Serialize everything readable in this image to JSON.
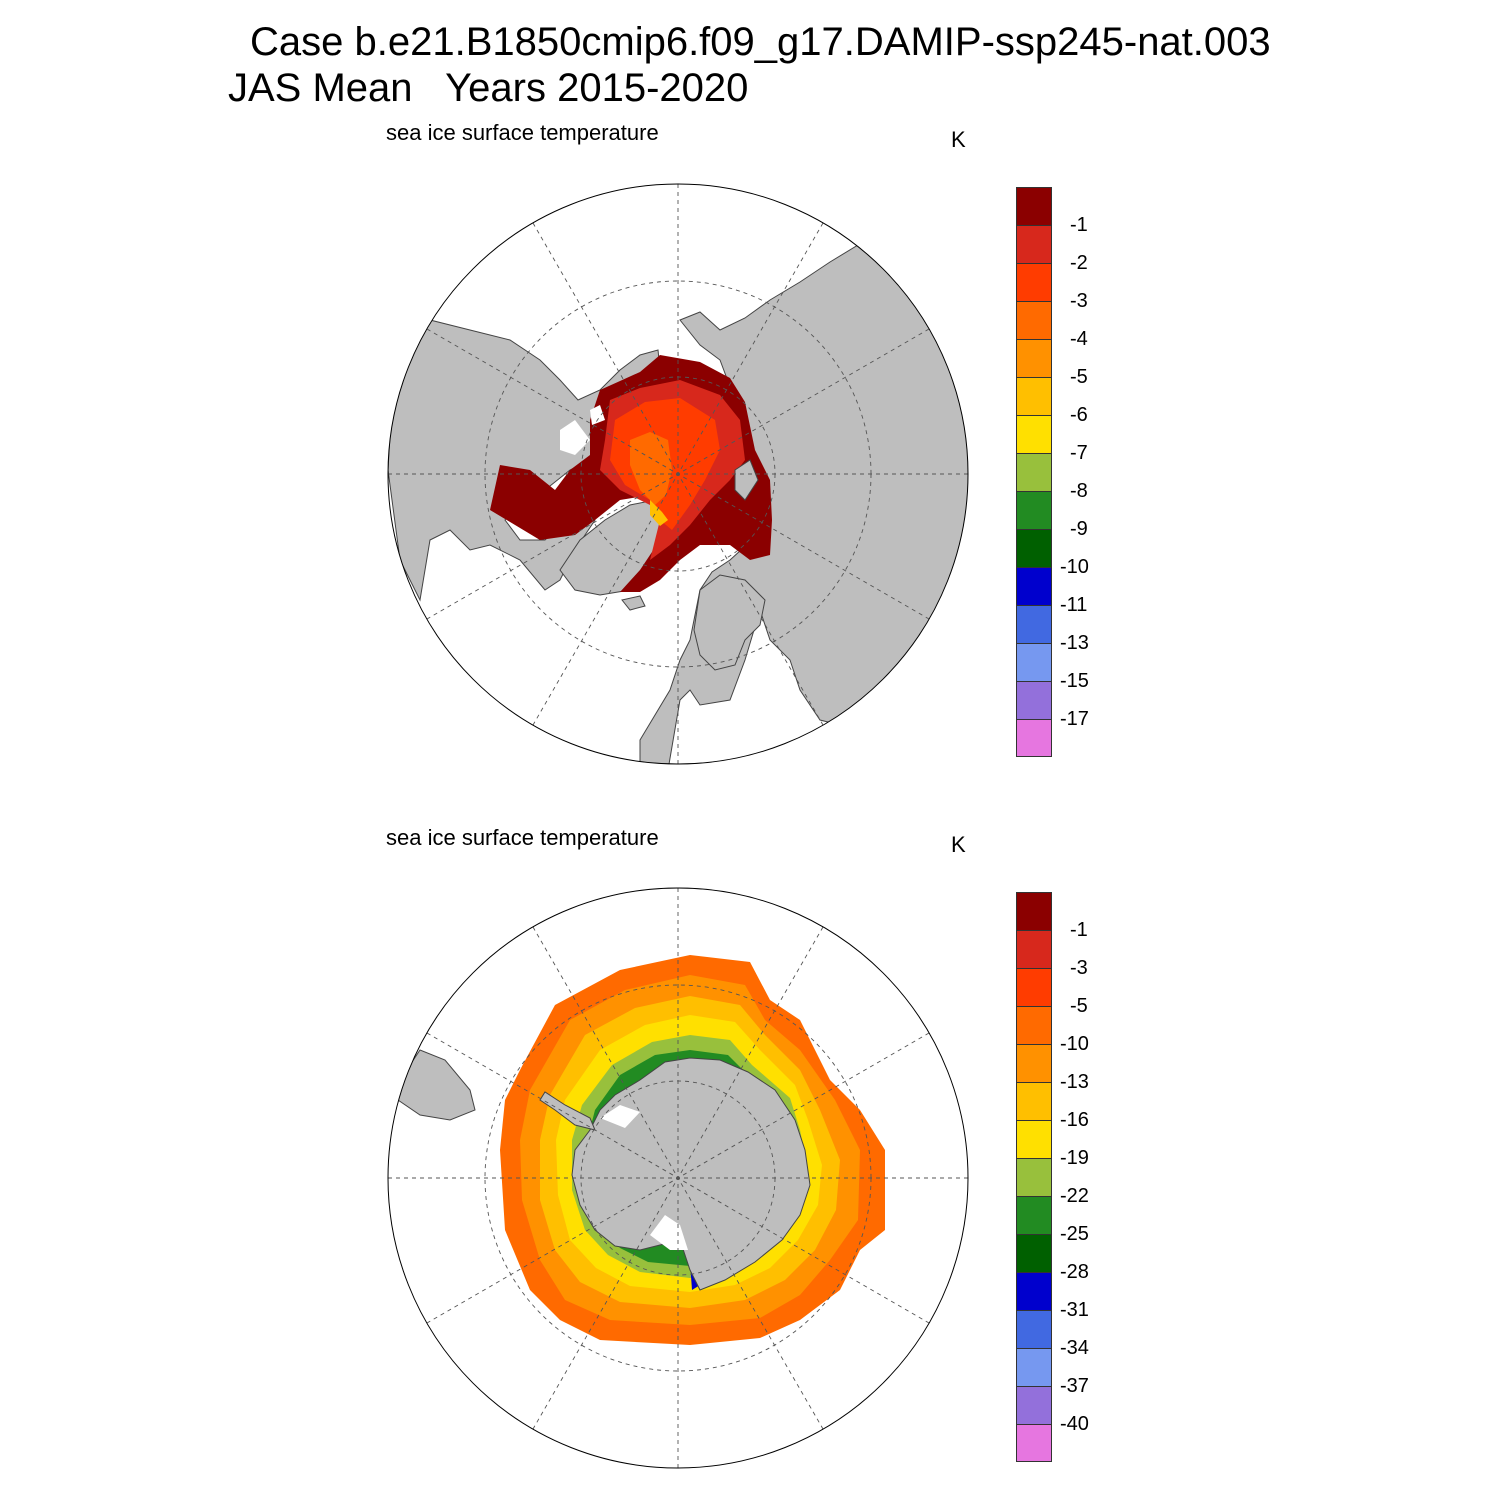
{
  "title": {
    "line1": "Case b.e21.B1850cmip6.f09_g17.DAMIP-ssp245-nat.003",
    "line2": "JAS Mean   Years 2015-2020"
  },
  "panels": [
    {
      "id": "north",
      "hemisphere": "Northern Hemisphere (Arctic)",
      "variable": "sea ice surface temperature",
      "units": "K",
      "colorbar": {
        "colors": [
          "#8b0000",
          "#d7281c",
          "#ff3c00",
          "#ff6a00",
          "#ff9100",
          "#ffbf00",
          "#ffe000",
          "#98c03c",
          "#228b22",
          "#006000",
          "#0000cd",
          "#4169e1",
          "#7698f0",
          "#9370db",
          "#e676e0"
        ],
        "labels": [
          "-1",
          "-2",
          "-3",
          "-4",
          "-5",
          "-6",
          "-7",
          "-8",
          "-9",
          "-10",
          "-11",
          "-13",
          "-15",
          "-17"
        ]
      }
    },
    {
      "id": "south",
      "hemisphere": "Southern Hemisphere (Antarctic)",
      "variable": "sea ice surface temperature",
      "units": "K",
      "colorbar": {
        "colors": [
          "#8b0000",
          "#d7281c",
          "#ff3c00",
          "#ff6a00",
          "#ff9100",
          "#ffbf00",
          "#ffe000",
          "#98c03c",
          "#228b22",
          "#006000",
          "#0000cd",
          "#4169e1",
          "#7698f0",
          "#9370db",
          "#e676e0"
        ],
        "labels": [
          "-1",
          "-3",
          "-5",
          "-10",
          "-13",
          "-16",
          "-19",
          "-22",
          "-25",
          "-28",
          "-31",
          "-34",
          "-37",
          "-40"
        ]
      }
    }
  ],
  "colors": {
    "land": "#bebebe",
    "ocean": "#ffffff",
    "grid": "#555555"
  }
}
